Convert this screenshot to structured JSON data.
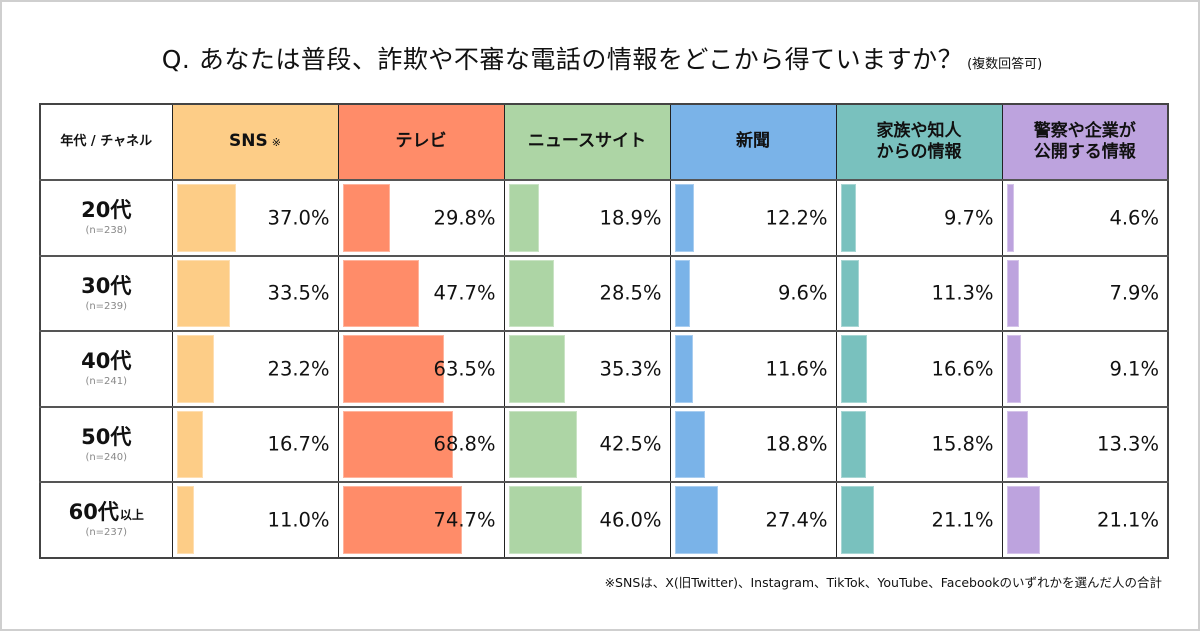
{
  "title": {
    "main": "Q. あなたは普段、詐欺や不審な電話の情報をどこから得ていますか？",
    "sub": "(複数回答可)"
  },
  "table": {
    "corner_label": "年代 / チャネル"
  },
  "footnote": "※SNSは、X(旧Twitter)、Instagram、TikTok、YouTube、Facebookのいずれかを選んだ人の合計",
  "chart_data": {
    "type": "table",
    "title": "Q. あなたは普段、詐欺や不審な電話の情報をどこから得ていますか？(複数回答可)",
    "unit": "%",
    "value_range": [
      0,
      100
    ],
    "columns": [
      {
        "label": "SNS",
        "mark": "※",
        "color": "#FDCD87"
      },
      {
        "label": "テレビ",
        "mark": "",
        "color": "#FF8C69"
      },
      {
        "label": "ニュースサイト",
        "mark": "",
        "color": "#ADD5A5"
      },
      {
        "label": "新聞",
        "mark": "",
        "color": "#7AB3E8"
      },
      {
        "label": "家族や知人\nからの情報",
        "line1": "家族や知人",
        "line2": "からの情報",
        "mark": "",
        "color": "#79C1BE"
      },
      {
        "label": "警察や企業が\n公開する情報",
        "line1": "警察や企業が",
        "line2": "公開する情報",
        "mark": "",
        "color": "#BDA3DE"
      }
    ],
    "rows": [
      {
        "age": "20代",
        "suffix": "",
        "n": "(n=238)",
        "values": [
          37.0,
          29.8,
          18.9,
          12.2,
          9.7,
          4.6
        ]
      },
      {
        "age": "30代",
        "suffix": "",
        "n": "(n=239)",
        "values": [
          33.5,
          47.7,
          28.5,
          9.6,
          11.3,
          7.9
        ]
      },
      {
        "age": "40代",
        "suffix": "",
        "n": "(n=241)",
        "values": [
          23.2,
          63.5,
          35.3,
          11.6,
          16.6,
          9.1
        ]
      },
      {
        "age": "50代",
        "suffix": "",
        "n": "(n=240)",
        "values": [
          16.7,
          68.8,
          42.5,
          18.8,
          15.8,
          13.3
        ]
      },
      {
        "age": "60代",
        "suffix": "以上",
        "n": "(n=237)",
        "values": [
          11.0,
          74.7,
          46.0,
          27.4,
          21.1,
          21.1
        ]
      }
    ]
  }
}
